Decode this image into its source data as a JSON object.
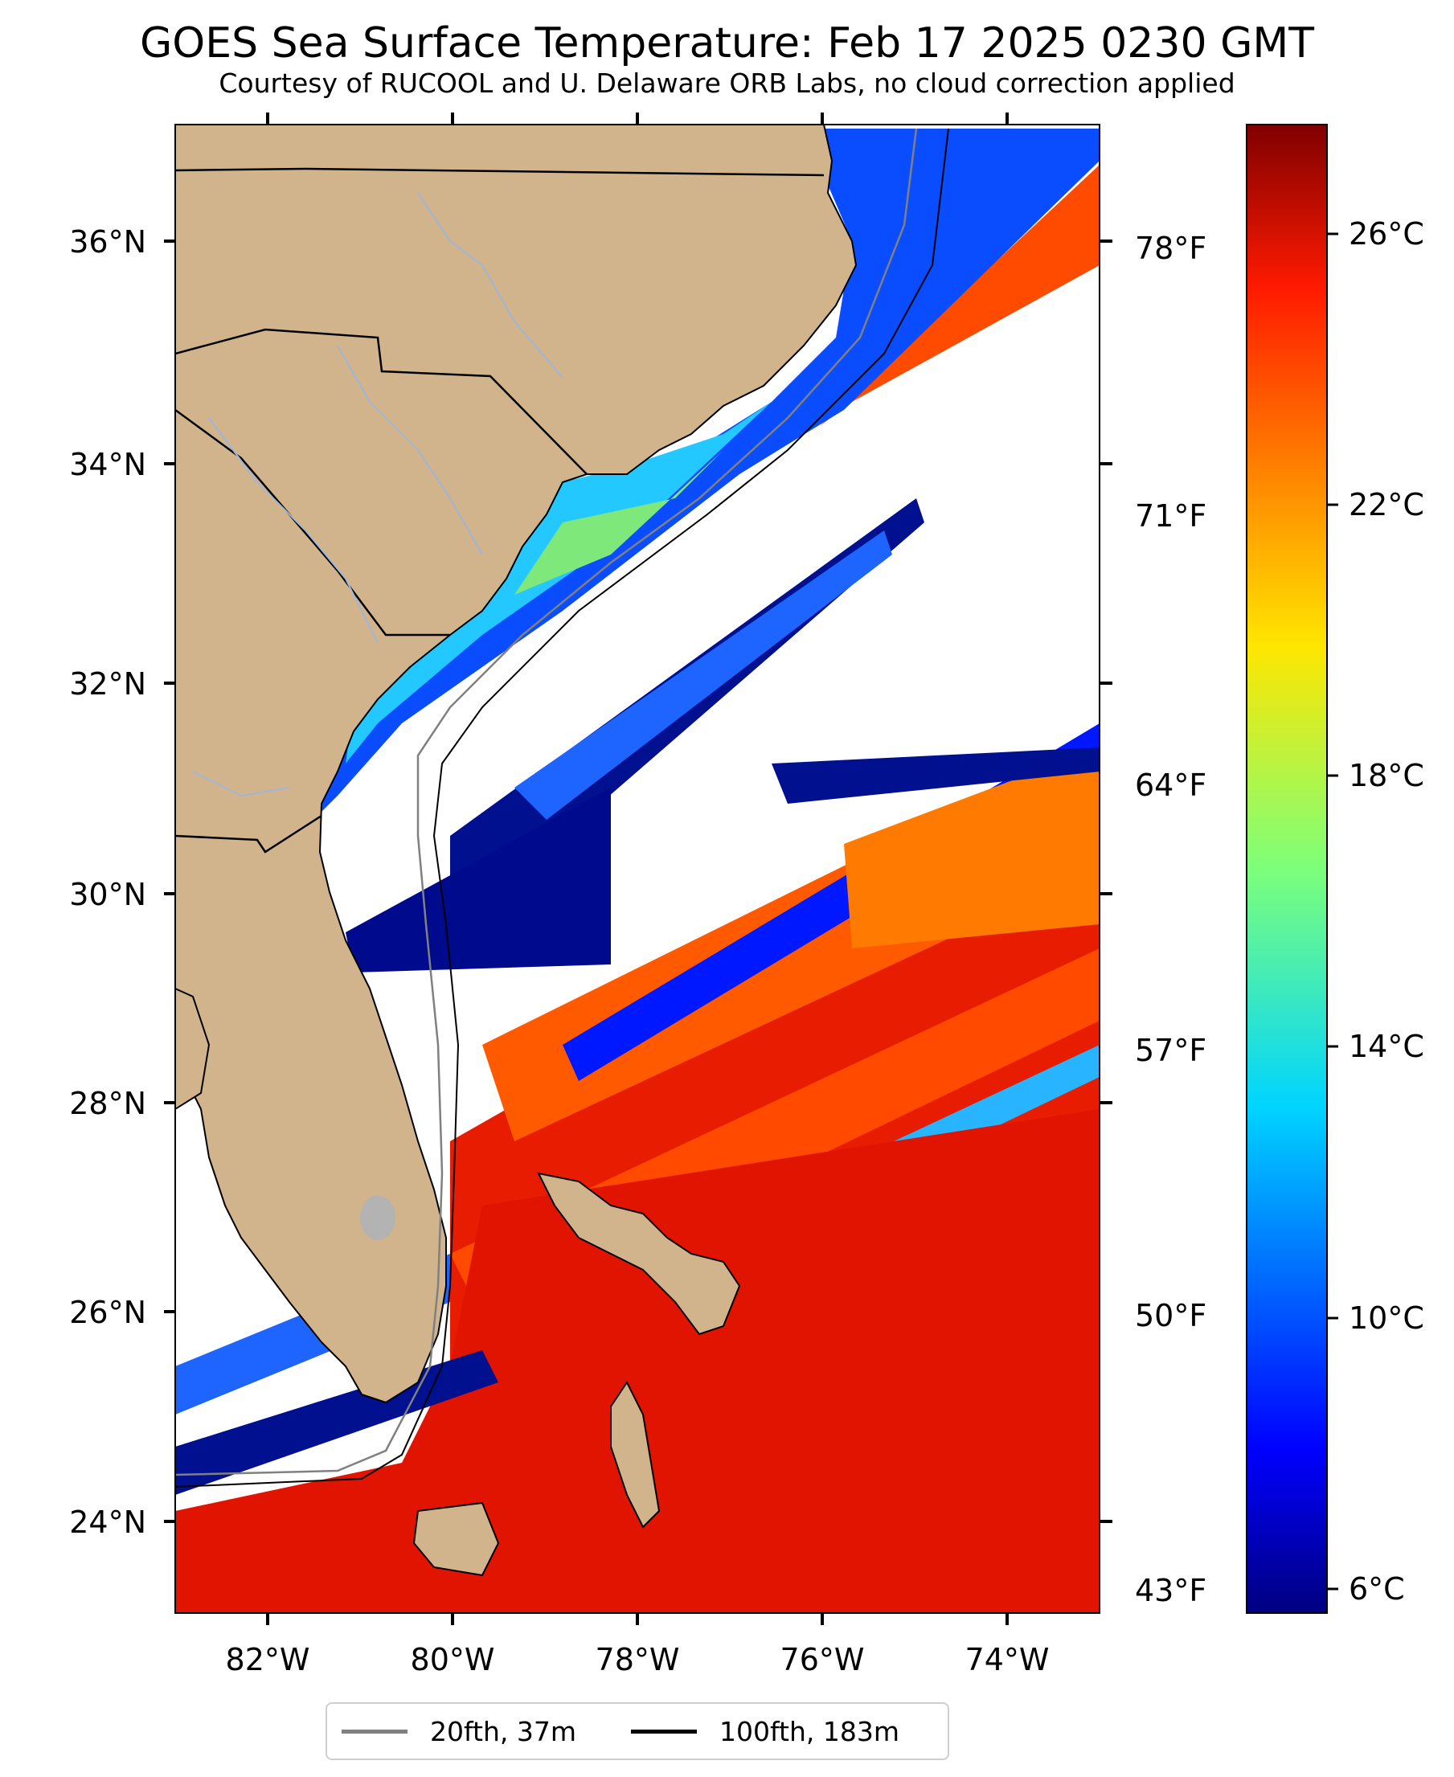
{
  "title": "GOES Sea Surface Temperature: Feb 17 2025 0230 GMT",
  "subtitle": "Courtesy of RUCOOL and U. Delaware ORB Labs, no cloud correction applied",
  "map": {
    "lat_range": [
      23.1,
      37.0
    ],
    "lon_range": [
      -83.0,
      -73.0
    ],
    "land_color": "#d2b48c",
    "no_data_color": "#ffffff",
    "lat_ticks": [
      "24°N",
      "26°N",
      "28°N",
      "30°N",
      "32°N",
      "34°N",
      "36°N"
    ],
    "lon_ticks": [
      "82°W",
      "80°W",
      "78°W",
      "76°W",
      "74°W"
    ],
    "fahrenheit_ticks": [
      "43°F",
      "50°F",
      "57°F",
      "64°F",
      "71°F",
      "78°F"
    ]
  },
  "colorbar": {
    "colormap": "jet",
    "range_c": [
      5.5,
      27.5
    ],
    "ticks": [
      "6°C",
      "10°C",
      "14°C",
      "18°C",
      "22°C",
      "26°C"
    ]
  },
  "legend": [
    {
      "label": "20fth, 37m",
      "color": "#808080"
    },
    {
      "label": "100fth, 183m",
      "color": "#000000"
    }
  ]
}
